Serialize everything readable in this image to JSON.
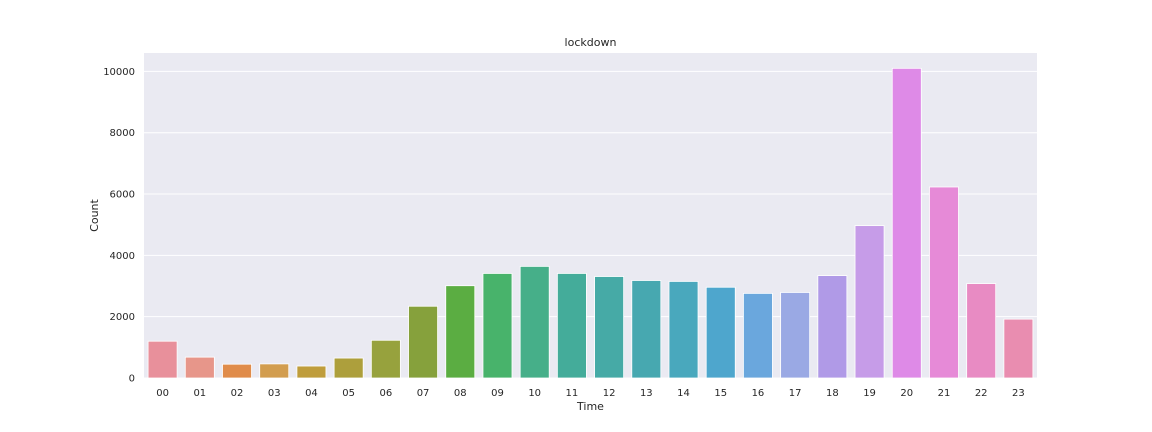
{
  "chart_data": {
    "type": "bar",
    "title": "lockdown",
    "xlabel": "Time",
    "ylabel": "Count",
    "categories": [
      "00",
      "01",
      "02",
      "03",
      "04",
      "05",
      "06",
      "07",
      "08",
      "09",
      "10",
      "11",
      "12",
      "13",
      "14",
      "15",
      "16",
      "17",
      "18",
      "19",
      "20",
      "21",
      "22",
      "23"
    ],
    "values": [
      1200,
      680,
      450,
      460,
      390,
      650,
      1230,
      2340,
      3010,
      3410,
      3640,
      3410,
      3310,
      3180,
      3150,
      2960,
      2760,
      2790,
      3340,
      4970,
      10100,
      6230,
      3080,
      1920
    ],
    "colors": [
      "#e8909b",
      "#e7968a",
      "#e08c4a",
      "#d29d4f",
      "#bf9d3c",
      "#ad9f3c",
      "#97a23d",
      "#86a13c",
      "#5bad42",
      "#48b36b",
      "#46af89",
      "#44ac9a",
      "#46aaa6",
      "#47a8b0",
      "#49a8bd",
      "#4ea6cd",
      "#6aa7dd",
      "#9aa9e4",
      "#b09ae7",
      "#c69ce8",
      "#de8ae7",
      "#e68ad7",
      "#e88bc3",
      "#e98db0"
    ],
    "ylim": [
      0,
      10600
    ],
    "yticks": [
      0,
      2000,
      4000,
      6000,
      8000,
      10000
    ],
    "grid": true,
    "legend": "none"
  }
}
